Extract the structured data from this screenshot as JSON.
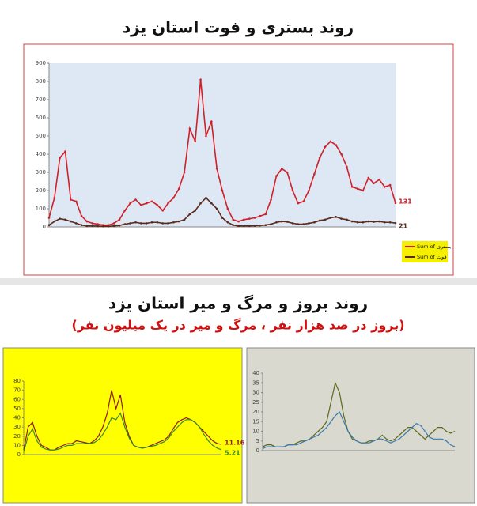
{
  "chart_data": [
    {
      "type": "line",
      "title": "روند بستری و فوت استان یزد",
      "ylim": [
        0,
        900
      ],
      "yticks": [
        0,
        100,
        200,
        300,
        400,
        500,
        600,
        700,
        800,
        900
      ],
      "grid": false,
      "end_labels": true,
      "legend": "bottom-right",
      "series": [
        {
          "name": "Sum of بستری",
          "color": "#d0202a",
          "values": [
            50,
            160,
            380,
            415,
            150,
            140,
            60,
            30,
            20,
            15,
            10,
            10,
            20,
            40,
            90,
            130,
            150,
            120,
            130,
            140,
            120,
            90,
            130,
            160,
            210,
            300,
            540,
            470,
            810,
            500,
            580,
            320,
            200,
            100,
            40,
            30,
            40,
            45,
            50,
            60,
            70,
            150,
            280,
            320,
            300,
            200,
            130,
            140,
            200,
            290,
            380,
            440,
            470,
            450,
            400,
            330,
            220,
            210,
            200,
            270,
            240,
            260,
            220,
            230,
            131
          ]
        },
        {
          "name": "Sum of فوت",
          "color": "#5a2a1a",
          "values": [
            10,
            30,
            45,
            40,
            30,
            20,
            10,
            5,
            5,
            4,
            3,
            3,
            5,
            8,
            15,
            20,
            25,
            20,
            20,
            25,
            25,
            20,
            20,
            25,
            30,
            40,
            70,
            90,
            130,
            160,
            130,
            100,
            50,
            25,
            10,
            5,
            5,
            5,
            6,
            8,
            10,
            15,
            25,
            30,
            28,
            20,
            15,
            15,
            20,
            25,
            35,
            40,
            50,
            55,
            45,
            40,
            30,
            25,
            25,
            30,
            28,
            30,
            25,
            25,
            21
          ]
        }
      ]
    },
    {
      "type": "line",
      "ylim": [
        0,
        80
      ],
      "yticks": [
        0,
        10,
        20,
        30,
        40,
        50,
        60,
        70,
        80
      ],
      "grid": false,
      "end_labels": true,
      "series": [
        {
          "color": "#8b1a1a",
          "values": [
            5,
            30,
            35,
            20,
            10,
            8,
            5,
            5,
            8,
            10,
            12,
            12,
            15,
            14,
            13,
            12,
            15,
            20,
            30,
            45,
            70,
            50,
            65,
            35,
            20,
            10,
            8,
            7,
            8,
            10,
            12,
            14,
            16,
            20,
            28,
            35,
            38,
            40,
            38,
            35,
            30,
            25,
            20,
            15,
            12,
            11.16
          ]
        },
        {
          "color": "#3a8a2a",
          "values": [
            3,
            20,
            28,
            15,
            8,
            6,
            5,
            5,
            6,
            8,
            10,
            10,
            12,
            12,
            12,
            12,
            13,
            16,
            22,
            30,
            40,
            38,
            45,
            30,
            18,
            10,
            8,
            7,
            8,
            9,
            10,
            12,
            14,
            18,
            25,
            30,
            35,
            38,
            38,
            35,
            30,
            22,
            15,
            10,
            7,
            5.21
          ]
        }
      ]
    },
    {
      "type": "line",
      "ylim": [
        0,
        40
      ],
      "yticks": [
        0,
        5,
        10,
        15,
        20,
        25,
        30,
        35,
        40
      ],
      "grid": false,
      "end_labels": false,
      "series": [
        {
          "color": "#5a6a1a",
          "values": [
            2,
            3,
            3,
            2,
            2,
            2,
            3,
            3,
            4,
            5,
            5,
            6,
            8,
            10,
            12,
            15,
            25,
            35,
            30,
            18,
            10,
            6,
            5,
            4,
            4,
            5,
            5,
            6,
            8,
            6,
            5,
            6,
            8,
            10,
            12,
            12,
            10,
            8,
            6,
            8,
            10,
            12,
            12,
            10,
            9,
            10
          ]
        },
        {
          "color": "#3a7ab0",
          "values": [
            1,
            2,
            2,
            2,
            2,
            2,
            3,
            3,
            3,
            4,
            5,
            6,
            7,
            8,
            10,
            12,
            15,
            18,
            20,
            15,
            10,
            7,
            5,
            4,
            4,
            4,
            5,
            6,
            6,
            5,
            4,
            5,
            6,
            8,
            10,
            12,
            14,
            13,
            10,
            7,
            6,
            6,
            6,
            5,
            3,
            2
          ]
        }
      ]
    }
  ],
  "section2": {
    "title": "روند بروز و مرگ و میر استان یزد",
    "subtitle": "(بروز در صد هزار نفر ، مرگ و میر در یک میلیون نفر)"
  }
}
